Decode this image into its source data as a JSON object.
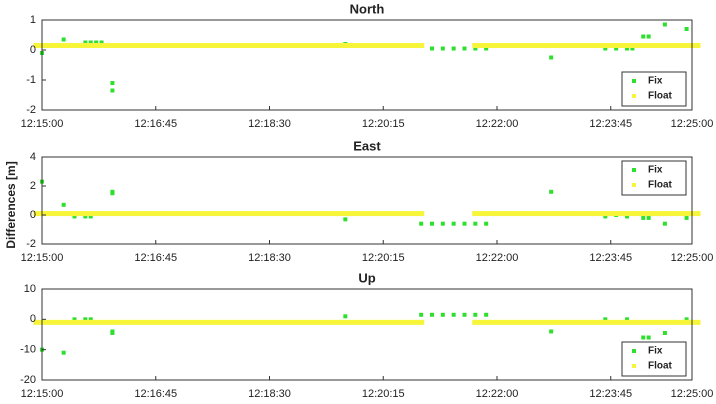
{
  "ylabel": "Differences [m]",
  "chart_data": [
    {
      "type": "scatter",
      "title": "North",
      "xlim": [
        "12:15:00",
        "12:25:00"
      ],
      "xticks": [
        "12:15:00",
        "12:16:45",
        "12:18:30",
        "12:20:15",
        "12:22:00",
        "12:23:45",
        "12:25:00"
      ],
      "ylim": [
        -2,
        1
      ],
      "yticks": [
        -2,
        -1,
        0,
        1
      ],
      "grid": false,
      "legend": "lower right",
      "series": [
        {
          "name": "Fix",
          "color": "#2ee02e",
          "x": [
            "12:15:00",
            "12:15:20",
            "12:15:40",
            "12:15:45",
            "12:15:50",
            "12:15:55",
            "12:16:05",
            "12:16:05",
            "12:19:40",
            "12:21:00",
            "12:21:10",
            "12:21:20",
            "12:21:30",
            "12:21:40",
            "12:21:50",
            "12:22:50",
            "12:23:40",
            "12:23:50",
            "12:24:00",
            "12:24:05",
            "12:24:15",
            "12:24:20",
            "12:24:35",
            "12:24:55"
          ],
          "values": [
            -0.1,
            0.35,
            0.25,
            0.25,
            0.25,
            0.25,
            -1.1,
            -1.35,
            0.2,
            0.05,
            0.05,
            0.05,
            0.05,
            0.05,
            0.05,
            -0.25,
            0.05,
            0.05,
            0.05,
            0.05,
            0.45,
            0.45,
            0.85,
            0.7
          ]
        },
        {
          "name": "Float",
          "color": "#f7f53a",
          "x": [
            "12:15:00",
            "12:15:15",
            "12:15:30",
            "12:15:45",
            "12:16:00",
            "12:16:15",
            "12:16:30",
            "12:16:45",
            "12:17:00",
            "12:17:15",
            "12:17:30",
            "12:17:45",
            "12:18:00",
            "12:18:15",
            "12:18:30",
            "12:18:45",
            "12:19:00",
            "12:19:15",
            "12:19:30",
            "12:19:45",
            "12:20:00",
            "12:20:15",
            "12:20:30",
            "12:20:45",
            "12:21:00",
            "12:21:15",
            "12:21:30",
            "12:21:45",
            "12:22:00",
            "12:22:15",
            "12:22:30",
            "12:22:45",
            "12:23:00",
            "12:23:15",
            "12:23:30",
            "12:23:45",
            "12:24:00",
            "12:24:15",
            "12:24:30",
            "12:24:45",
            "12:25:00"
          ],
          "values": [
            0.15,
            0.15,
            0.15,
            0.15,
            0.15,
            0.15,
            0.15,
            0.15,
            0.15,
            0.15,
            0.15,
            0.15,
            0.15,
            0.15,
            0.15,
            0.15,
            0.15,
            0.15,
            0.15,
            0.15,
            0.15,
            0.15,
            0.15,
            0.15,
            null,
            null,
            null,
            0.15,
            0.15,
            0.15,
            0.15,
            0.15,
            0.15,
            0.15,
            0.15,
            0.15,
            0.15,
            0.15,
            0.15,
            0.15,
            0.15
          ]
        }
      ]
    },
    {
      "type": "scatter",
      "title": "East",
      "xlim": [
        "12:15:00",
        "12:25:00"
      ],
      "xticks": [
        "12:15:00",
        "12:16:45",
        "12:18:30",
        "12:20:15",
        "12:22:00",
        "12:23:45",
        "12:25:00"
      ],
      "ylim": [
        -2,
        4
      ],
      "yticks": [
        -2,
        0,
        2,
        4
      ],
      "grid": false,
      "legend": "upper right",
      "series": [
        {
          "name": "Fix",
          "color": "#2ee02e",
          "x": [
            "12:15:00",
            "12:15:20",
            "12:15:30",
            "12:15:40",
            "12:15:45",
            "12:16:05",
            "12:16:05",
            "12:19:40",
            "12:20:50",
            "12:21:00",
            "12:21:10",
            "12:21:20",
            "12:21:30",
            "12:21:40",
            "12:21:50",
            "12:22:50",
            "12:23:40",
            "12:23:50",
            "12:24:00",
            "12:24:15",
            "12:24:20",
            "12:24:35",
            "12:24:55"
          ],
          "values": [
            2.3,
            0.7,
            -0.1,
            -0.1,
            -0.1,
            1.6,
            1.5,
            -0.3,
            -0.6,
            -0.6,
            -0.6,
            -0.6,
            -0.6,
            -0.6,
            -0.6,
            1.6,
            -0.1,
            0,
            -0.1,
            -0.2,
            -0.2,
            -0.6,
            -0.2
          ]
        },
        {
          "name": "Float",
          "color": "#f7f53a",
          "x": [
            "12:15:00",
            "12:15:15",
            "12:15:30",
            "12:15:45",
            "12:16:00",
            "12:16:15",
            "12:16:30",
            "12:16:45",
            "12:17:00",
            "12:17:15",
            "12:17:30",
            "12:17:45",
            "12:18:00",
            "12:18:15",
            "12:18:30",
            "12:18:45",
            "12:19:00",
            "12:19:15",
            "12:19:30",
            "12:19:45",
            "12:20:00",
            "12:20:15",
            "12:20:30",
            "12:20:45",
            "12:21:00",
            "12:21:15",
            "12:21:30",
            "12:21:45",
            "12:22:00",
            "12:22:15",
            "12:22:30",
            "12:22:45",
            "12:23:00",
            "12:23:15",
            "12:23:30",
            "12:23:45",
            "12:24:00",
            "12:24:15",
            "12:24:30",
            "12:24:45",
            "12:25:00"
          ],
          "values": [
            0.1,
            0.1,
            0.1,
            0.1,
            0.1,
            0.1,
            0.1,
            0.1,
            0.1,
            0.1,
            0.1,
            0.1,
            0.1,
            0.1,
            0.1,
            0.1,
            0.1,
            0.1,
            0.1,
            0.1,
            0.1,
            0.1,
            0.1,
            0.1,
            null,
            null,
            null,
            0.1,
            0.1,
            0.1,
            0.1,
            0.1,
            0.1,
            0.1,
            0.1,
            0.1,
            0.1,
            0.1,
            0.1,
            0.1,
            0.1
          ]
        }
      ]
    },
    {
      "type": "scatter",
      "title": "Up",
      "xlim": [
        "12:15:00",
        "12:25:00"
      ],
      "xticks": [
        "12:15:00",
        "12:16:45",
        "12:18:30",
        "12:20:15",
        "12:22:00",
        "12:23:45",
        "12:25:00"
      ],
      "ylim": [
        -20,
        10
      ],
      "yticks": [
        -20,
        -10,
        0,
        10
      ],
      "grid": false,
      "legend": "lower right",
      "series": [
        {
          "name": "Fix",
          "color": "#2ee02e",
          "x": [
            "12:15:00",
            "12:15:20",
            "12:15:30",
            "12:15:40",
            "12:15:45",
            "12:16:05",
            "12:16:05",
            "12:19:40",
            "12:20:50",
            "12:21:00",
            "12:21:10",
            "12:21:20",
            "12:21:30",
            "12:21:40",
            "12:21:50",
            "12:22:50",
            "12:23:40",
            "12:24:00",
            "12:24:15",
            "12:24:20",
            "12:24:35",
            "12:24:55"
          ],
          "values": [
            -10,
            -11,
            0,
            0,
            0,
            -4,
            -4.5,
            1,
            1.5,
            1.5,
            1.5,
            1.5,
            1.5,
            1.5,
            1.5,
            -4,
            0,
            0,
            -6,
            -6,
            -4.5,
            0
          ]
        },
        {
          "name": "Float",
          "color": "#f7f53a",
          "x": [
            "12:15:00",
            "12:15:15",
            "12:15:30",
            "12:15:45",
            "12:16:00",
            "12:16:15",
            "12:16:30",
            "12:16:45",
            "12:17:00",
            "12:17:15",
            "12:17:30",
            "12:17:45",
            "12:18:00",
            "12:18:15",
            "12:18:30",
            "12:18:45",
            "12:19:00",
            "12:19:15",
            "12:19:30",
            "12:19:45",
            "12:20:00",
            "12:20:15",
            "12:20:30",
            "12:20:45",
            "12:21:00",
            "12:21:15",
            "12:21:30",
            "12:21:45",
            "12:22:00",
            "12:22:15",
            "12:22:30",
            "12:22:45",
            "12:23:00",
            "12:23:15",
            "12:23:30",
            "12:23:45",
            "12:24:00",
            "12:24:15",
            "12:24:30",
            "12:24:45",
            "12:25:00"
          ],
          "values": [
            -1,
            -1,
            -1,
            -1,
            -1,
            -1,
            -1,
            -1,
            -1,
            -1,
            -1,
            -1,
            -1,
            -1,
            -1,
            -1,
            -1,
            -1,
            -1,
            -1,
            -1,
            -1,
            -1,
            -1,
            null,
            null,
            null,
            -1,
            -1,
            -1,
            -1,
            -1,
            -1,
            -1,
            -1,
            -1,
            -1,
            -1,
            -1,
            -1,
            -1
          ]
        }
      ]
    }
  ]
}
